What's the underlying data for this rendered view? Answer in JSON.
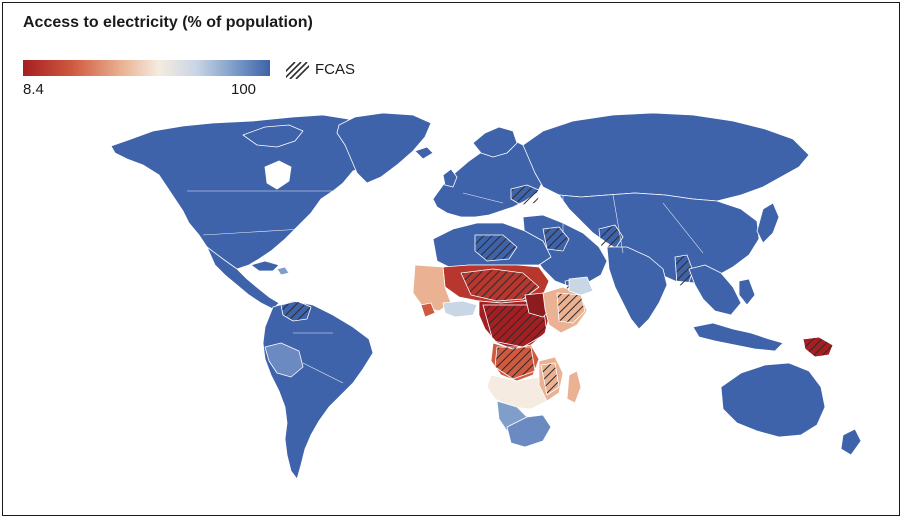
{
  "legend": {
    "title": "Access to electricity (% of population)",
    "scale_min": "8.4",
    "scale_max": "100",
    "fcas_label": "FCAS",
    "colors": {
      "low": "#a51f22",
      "mid": "#f5ebe0",
      "high": "#3e63aa",
      "fcas_hatch": "#2b2b2b"
    }
  },
  "map": {
    "projection": "world-robinson-like",
    "ocean_color": "#ffffff",
    "border_color": "#ffffff",
    "default_land_color": "#3e63aa"
  }
}
